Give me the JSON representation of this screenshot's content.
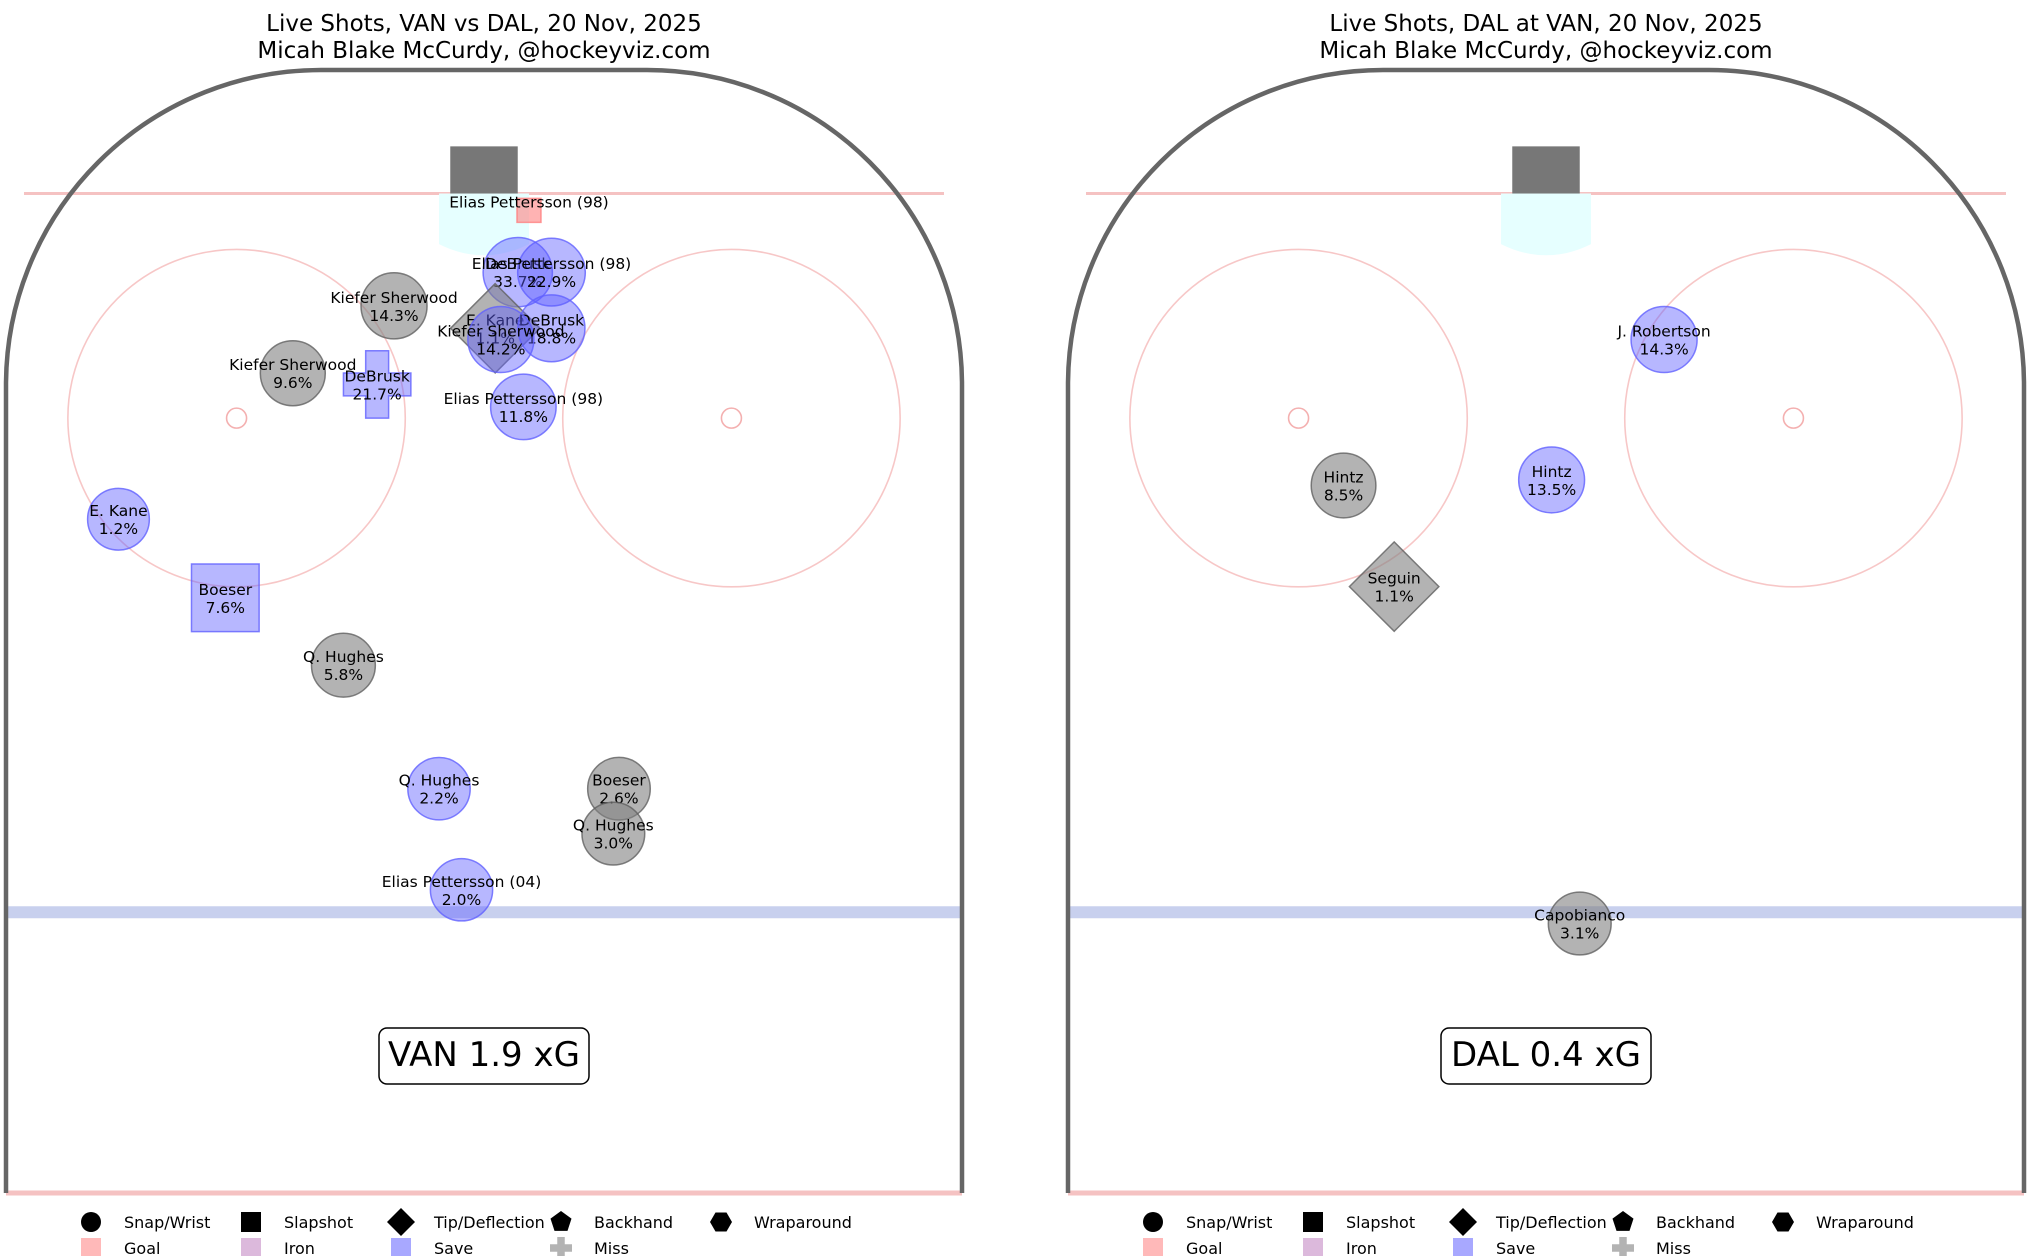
{
  "colors": {
    "goal": "#ff8080",
    "iron": "#c080c0",
    "save": "#6060ff",
    "miss": "#808080",
    "boards": "#666666",
    "red_line": "#f5c2c2",
    "blue_line": "#c8d0ee",
    "net": "#777777",
    "crease": "#e6ffff"
  },
  "chart_data": [
    {
      "type": "scatter",
      "title": "Live Shots, VAN vs DAL, 20 Nov, 2025",
      "subtitle": "Micah Blake McCurdy, @hockeyviz.com",
      "summary": "VAN 1.9 xG",
      "shots": [
        {
          "player": "Elias Pettersson (98)",
          "pct": "",
          "x": 4,
          "y": 87.5,
          "type": "snap",
          "result": "goal",
          "size": 0
        },
        {
          "player": "DeBrusk",
          "pct": "33.7%",
          "x": 3,
          "y": 82,
          "type": "snap",
          "result": "save",
          "size": 33.7
        },
        {
          "player": "Elias Pettersson (98)",
          "pct": "22.9%",
          "x": 6,
          "y": 82,
          "type": "snap",
          "result": "save",
          "size": 22.9
        },
        {
          "player": "Kiefer Sherwood",
          "pct": "14.3%",
          "x": -8,
          "y": 79,
          "type": "snap",
          "result": "miss",
          "size": 14.3
        },
        {
          "player": "Kiefer Sherwood",
          "pct": "9.6%",
          "x": -17,
          "y": 73,
          "type": "snap",
          "result": "miss",
          "size": 9.6
        },
        {
          "player": "DeBrusk",
          "pct": "21.7%",
          "x": -9.5,
          "y": 72,
          "type": "backhand",
          "result": "save",
          "size": 21.7
        },
        {
          "player": "E. Kane",
          "pct": "1.1%",
          "x": 1,
          "y": 77,
          "type": "tip",
          "result": "miss",
          "size": 1.1
        },
        {
          "player": "DeBrusk",
          "pct": "18.8%",
          "x": 6,
          "y": 77,
          "type": "snap",
          "result": "save",
          "size": 18.8
        },
        {
          "player": "Kiefer Sherwood",
          "pct": "14.2%",
          "x": 1.5,
          "y": 76,
          "type": "snap",
          "result": "save",
          "size": 14.2
        },
        {
          "player": "Elias Pettersson (98)",
          "pct": "11.8%",
          "x": 3.5,
          "y": 70,
          "type": "snap",
          "result": "save",
          "size": 11.8
        },
        {
          "player": "E. Kane",
          "pct": "1.2%",
          "x": -32.5,
          "y": 60,
          "type": "snap",
          "result": "save",
          "size": 1.2
        },
        {
          "player": "Boeser",
          "pct": "7.6%",
          "x": -23,
          "y": 53,
          "type": "slap",
          "result": "save",
          "size": 7.6
        },
        {
          "player": "Q. Hughes",
          "pct": "5.8%",
          "x": -12.5,
          "y": 47,
          "type": "snap",
          "result": "miss",
          "size": 5.8
        },
        {
          "player": "Q. Hughes",
          "pct": "2.2%",
          "x": -4,
          "y": 36,
          "type": "snap",
          "result": "save",
          "size": 2.2
        },
        {
          "player": "Boeser",
          "pct": "2.6%",
          "x": 12,
          "y": 36,
          "type": "snap",
          "result": "miss",
          "size": 2.6
        },
        {
          "player": "Q. Hughes",
          "pct": "3.0%",
          "x": 11.5,
          "y": 32,
          "type": "snap",
          "result": "miss",
          "size": 3.0
        },
        {
          "player": "Elias Pettersson (04)",
          "pct": "2.0%",
          "x": -2,
          "y": 27,
          "type": "snap",
          "result": "save",
          "size": 2.0
        }
      ]
    },
    {
      "type": "scatter",
      "title": "Live Shots, DAL at VAN, 20 Nov, 2025",
      "subtitle": "Micah Blake McCurdy, @hockeyviz.com",
      "summary": "DAL 0.4 xG",
      "shots": [
        {
          "player": "J. Robertson",
          "pct": "14.3%",
          "x": 10.5,
          "y": 76,
          "type": "snap",
          "result": "save",
          "size": 14.3
        },
        {
          "player": "Hintz",
          "pct": "8.5%",
          "x": -18,
          "y": 63,
          "type": "snap",
          "result": "miss",
          "size": 8.5
        },
        {
          "player": "Hintz",
          "pct": "13.5%",
          "x": 0.5,
          "y": 63.5,
          "type": "snap",
          "result": "save",
          "size": 13.5
        },
        {
          "player": "Seguin",
          "pct": "1.1%",
          "x": -13.5,
          "y": 54,
          "type": "tip",
          "result": "miss",
          "size": 1.1
        },
        {
          "player": "Capobianco",
          "pct": "3.1%",
          "x": 3,
          "y": 24,
          "type": "snap",
          "result": "miss",
          "size": 3.1
        }
      ]
    }
  ],
  "legend": {
    "shapes": [
      {
        "label": "Snap/Wrist",
        "icon": "circle"
      },
      {
        "label": "Slapshot",
        "icon": "square"
      },
      {
        "label": "Tip/Deflection",
        "icon": "diamond"
      },
      {
        "label": "Backhand",
        "icon": "pentagon"
      },
      {
        "label": "Wraparound",
        "icon": "hexagon"
      }
    ],
    "results": [
      {
        "label": "Goal",
        "icon": "goal-square"
      },
      {
        "label": "Iron",
        "icon": "iron-square"
      },
      {
        "label": "Save",
        "icon": "save-square"
      },
      {
        "label": "Miss",
        "icon": "miss-cross"
      }
    ]
  }
}
